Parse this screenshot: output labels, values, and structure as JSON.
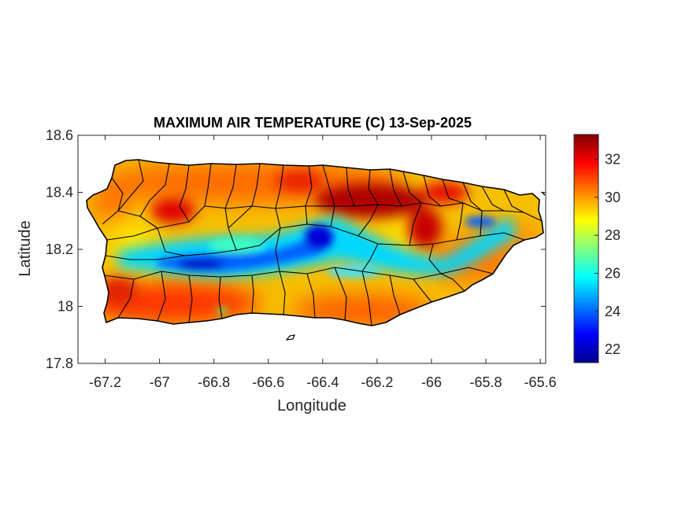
{
  "map": {
    "title": "MAXIMUM AIR TEMPERATURE (C) 13-Sep-2025",
    "xlabel": "Longitude",
    "ylabel": "Latitude",
    "xlim": [
      -67.3,
      -65.58
    ],
    "ylim": [
      17.8,
      18.6
    ],
    "xticks": [
      -67.2,
      -67,
      -66.8,
      -66.6,
      -66.4,
      -66.2,
      -66,
      -65.8,
      -65.6
    ],
    "xtick_labels": [
      "-67.2",
      "-67",
      "-66.8",
      "-66.6",
      "-66.4",
      "-66.2",
      "-66",
      "-65.8",
      "-65.6"
    ],
    "yticks": [
      17.8,
      18,
      18.2,
      18.4,
      18.6
    ],
    "ytick_labels": [
      "17.8",
      "18",
      "18.2",
      "18.4",
      "18.6"
    ],
    "colormap": "jet",
    "colorbar": {
      "range": [
        21.3,
        33.3
      ],
      "ticks": [
        22,
        24,
        26,
        28,
        30,
        32
      ],
      "tick_labels": [
        "22",
        "24",
        "26",
        "28",
        "30",
        "32"
      ]
    },
    "colors": {
      "axis": "#262626",
      "border": "#000000",
      "background": "#ffffff"
    }
  }
}
